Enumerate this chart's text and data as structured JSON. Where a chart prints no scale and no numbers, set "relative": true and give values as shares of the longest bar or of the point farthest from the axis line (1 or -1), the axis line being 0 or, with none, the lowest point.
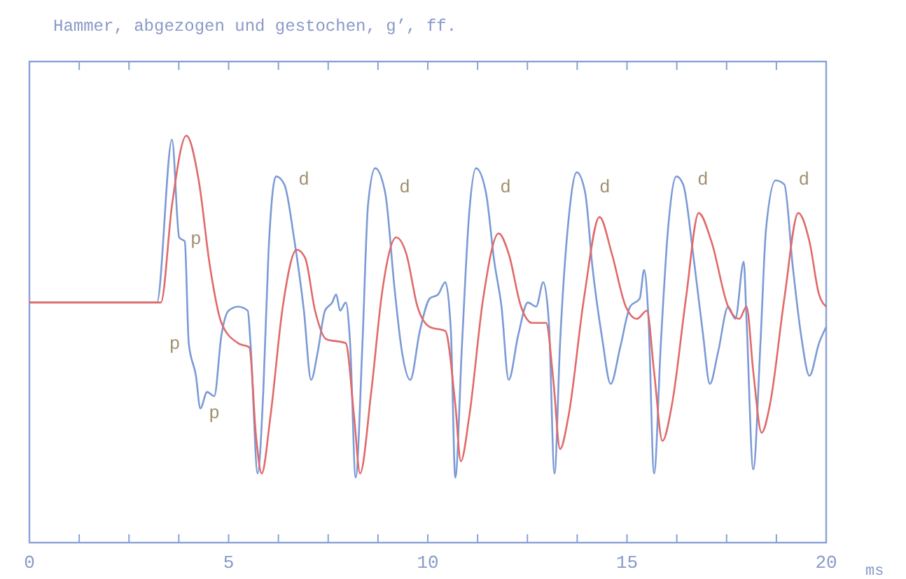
{
  "chart_data": {
    "type": "line",
    "title": "Hammer, abgezogen und gestochen, g’, ff.",
    "xlabel": "ms",
    "relative": true,
    "xlim": [
      0,
      20
    ],
    "xticks": [
      0,
      {
        "value": 1.25,
        "label": null
      },
      {
        "value": 2.5,
        "label": null
      },
      {
        "value": 3.75,
        "label": null
      },
      5,
      {
        "value": 6.25,
        "label": null
      },
      {
        "value": 7.5,
        "label": null
      },
      {
        "value": 8.75,
        "label": null
      },
      10,
      {
        "value": 11.25,
        "label": null
      },
      {
        "value": 12.5,
        "label": null
      },
      {
        "value": 13.75,
        "label": null
      },
      15,
      {
        "value": 16.25,
        "label": null
      },
      {
        "value": 17.5,
        "label": null
      },
      {
        "value": 18.75,
        "label": null
      },
      20
    ],
    "grid": false,
    "marker": "none",
    "line_style": "solid",
    "series": [
      {
        "color": "#7b9ad6",
        "x": [
          0,
          3.2,
          3.58,
          3.76,
          3.9,
          4.0,
          4.18,
          4.29,
          4.46,
          4.64,
          4.82,
          5.0,
          5.24,
          5.48,
          5.55,
          5.73,
          5.87,
          6.0,
          6.19,
          6.4,
          6.64,
          6.89,
          7.07,
          7.24,
          7.42,
          7.6,
          7.7,
          7.8,
          7.94,
          8.05,
          8.19,
          8.36,
          8.5,
          8.68,
          8.93,
          9.17,
          9.35,
          9.56,
          9.8,
          10.05,
          10.26,
          10.44,
          10.58,
          10.69,
          10.86,
          11.04,
          11.21,
          11.46,
          11.67,
          11.85,
          12.03,
          12.27,
          12.51,
          12.72,
          12.9,
          13.04,
          13.18,
          13.32,
          13.53,
          13.74,
          13.95,
          14.13,
          14.38,
          14.59,
          14.83,
          15.08,
          15.32,
          15.43,
          15.54,
          15.68,
          15.85,
          16.03,
          16.24,
          16.41,
          16.66,
          16.91,
          17.08,
          17.29,
          17.54,
          17.72,
          17.93,
          18.0,
          18.17,
          18.35,
          18.49,
          18.73,
          18.95,
          19.16,
          19.37,
          19.58,
          19.82,
          20
        ],
        "values": [
          0.59,
          0.59,
          0.99,
          0.75,
          0.74,
          0.49,
          0.41,
          0.33,
          0.37,
          0.36,
          0.51,
          0.57,
          0.58,
          0.57,
          0.49,
          0.17,
          0.37,
          0.71,
          0.9,
          0.88,
          0.75,
          0.57,
          0.4,
          0.47,
          0.57,
          0.59,
          0.61,
          0.57,
          0.59,
          0.49,
          0.16,
          0.49,
          0.83,
          0.92,
          0.86,
          0.62,
          0.47,
          0.4,
          0.52,
          0.6,
          0.61,
          0.64,
          0.52,
          0.16,
          0.49,
          0.81,
          0.92,
          0.86,
          0.69,
          0.58,
          0.4,
          0.51,
          0.59,
          0.58,
          0.64,
          0.54,
          0.17,
          0.49,
          0.79,
          0.91,
          0.86,
          0.68,
          0.5,
          0.39,
          0.48,
          0.58,
          0.6,
          0.67,
          0.55,
          0.17,
          0.49,
          0.77,
          0.9,
          0.88,
          0.71,
          0.51,
          0.39,
          0.47,
          0.58,
          0.55,
          0.69,
          0.55,
          0.18,
          0.49,
          0.77,
          0.89,
          0.88,
          0.68,
          0.51,
          0.41,
          0.49,
          0.53
        ]
      },
      {
        "color": "#e06a6a",
        "x": [
          0,
          3.3,
          3.58,
          3.94,
          4.25,
          4.53,
          4.82,
          5.24,
          5.52,
          5.69,
          5.83,
          6.05,
          6.36,
          6.71,
          6.92,
          7.17,
          7.45,
          7.94,
          8.15,
          8.3,
          8.58,
          8.86,
          9.21,
          9.46,
          9.74,
          10.05,
          10.44,
          10.69,
          10.83,
          11.04,
          11.39,
          11.78,
          12.03,
          12.34,
          12.62,
          12.97,
          13.15,
          13.32,
          13.53,
          13.92,
          14.31,
          14.62,
          14.97,
          15.25,
          15.5,
          15.68,
          15.89,
          16.13,
          16.48,
          16.8,
          17.12,
          17.54,
          17.82,
          18.0,
          18.17,
          18.38,
          18.59,
          18.95,
          19.3,
          19.58,
          19.82,
          20
        ],
        "values": [
          0.59,
          0.59,
          0.83,
          1.0,
          0.89,
          0.68,
          0.54,
          0.49,
          0.48,
          0.26,
          0.17,
          0.31,
          0.58,
          0.72,
          0.7,
          0.57,
          0.5,
          0.49,
          0.31,
          0.17,
          0.37,
          0.62,
          0.75,
          0.71,
          0.58,
          0.53,
          0.52,
          0.34,
          0.2,
          0.31,
          0.6,
          0.76,
          0.71,
          0.58,
          0.54,
          0.54,
          0.4,
          0.23,
          0.31,
          0.6,
          0.8,
          0.71,
          0.58,
          0.55,
          0.57,
          0.42,
          0.25,
          0.34,
          0.6,
          0.81,
          0.74,
          0.58,
          0.55,
          0.58,
          0.42,
          0.27,
          0.34,
          0.6,
          0.81,
          0.74,
          0.61,
          0.58
        ]
      }
    ],
    "annotations": [
      {
        "text": "p",
        "x": 3.9,
        "y": 0.74
      },
      {
        "text": "p",
        "x": 4.0,
        "y": 0.49
      },
      {
        "text": "p",
        "x": 4.64,
        "y": 0.36
      },
      {
        "text": "d",
        "x": 6.4,
        "y": 0.88
      },
      {
        "text": "d",
        "x": 8.93,
        "y": 0.86
      },
      {
        "text": "d",
        "x": 11.46,
        "y": 0.86
      },
      {
        "text": "d",
        "x": 13.95,
        "y": 0.86
      },
      {
        "text": "d",
        "x": 16.41,
        "y": 0.88
      },
      {
        "text": "d",
        "x": 18.95,
        "y": 0.88
      }
    ]
  }
}
